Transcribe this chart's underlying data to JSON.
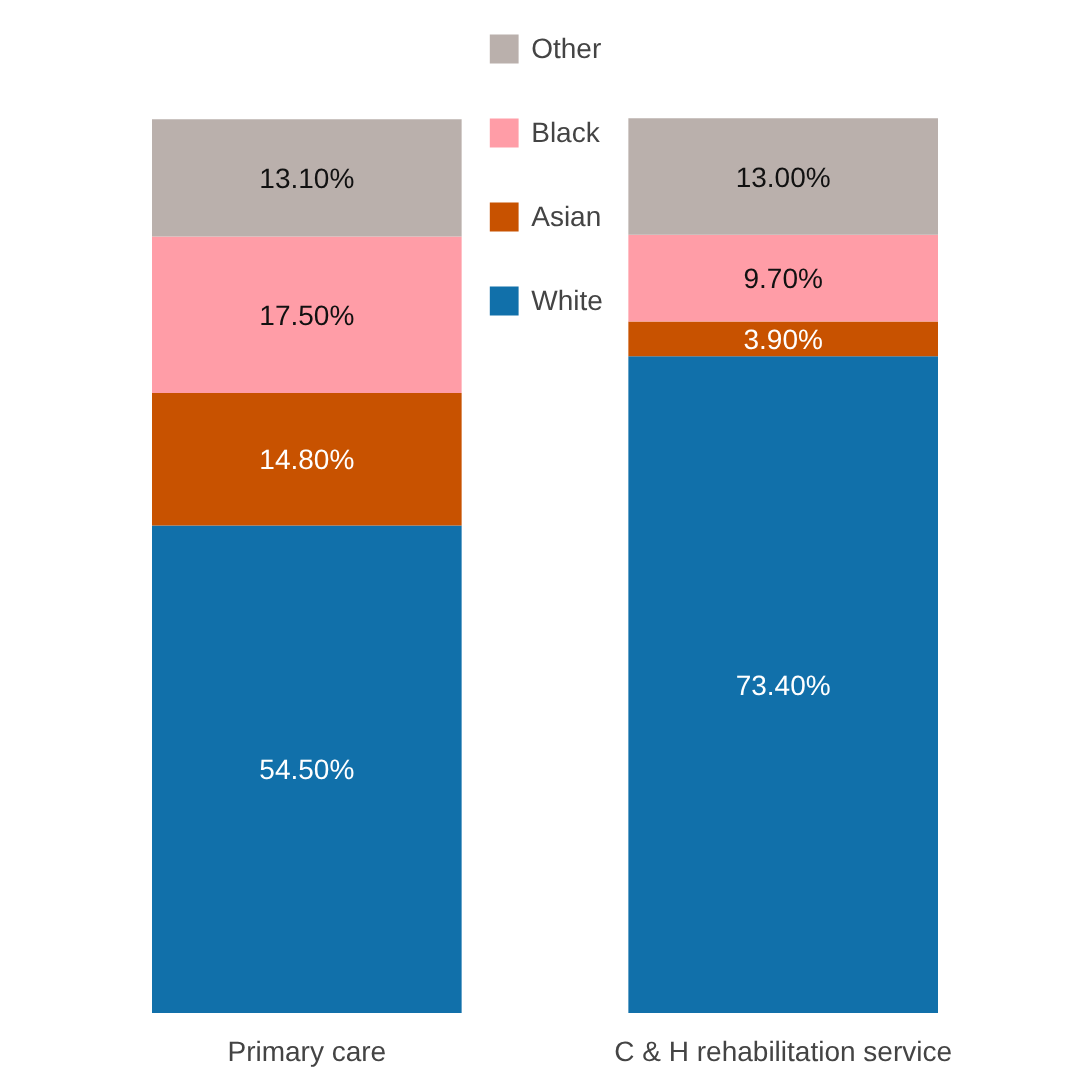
{
  "chart_data": {
    "type": "bar",
    "stacked": true,
    "categories": [
      "Primary care",
      "C & H rehabilitation service"
    ],
    "series": [
      {
        "name": "White",
        "color": "#1170aa",
        "values": [
          54.5,
          73.4
        ],
        "value_labels": [
          "54.50%",
          "73.40%"
        ]
      },
      {
        "name": "Asian",
        "color": "#c85200",
        "values": [
          14.8,
          3.9
        ],
        "value_labels": [
          "14.80%",
          "3.90%"
        ]
      },
      {
        "name": "Black",
        "color": "#ff9da7",
        "values": [
          17.5,
          9.7
        ],
        "value_labels": [
          "17.50%",
          "9.70%"
        ]
      },
      {
        "name": "Other",
        "color": "#bab0ac",
        "values": [
          13.1,
          13.0
        ],
        "value_labels": [
          "13.10%",
          "13.00%"
        ]
      }
    ],
    "legend": "top"
  }
}
